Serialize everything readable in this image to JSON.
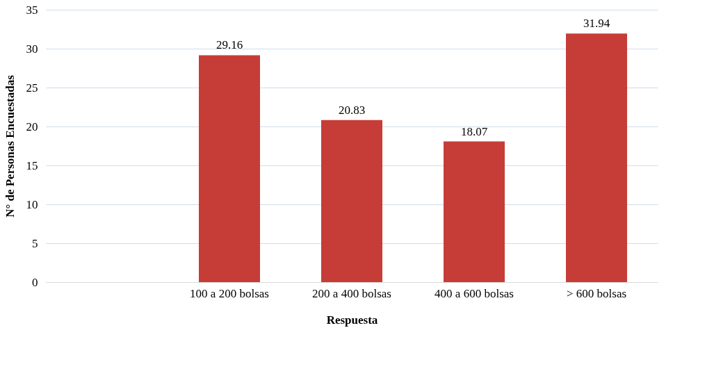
{
  "chart_data": {
    "type": "bar",
    "xlabel": "Respuesta",
    "ylabel": "N° de Personas Encuestadas",
    "categories": [
      null,
      "100 a 200 bolsas",
      "200 a 400 bolsas",
      "400 a 600 bolsas",
      "> 600 bolsas"
    ],
    "values": [
      null,
      29.16,
      20.83,
      18.07,
      31.94
    ],
    "color": "#c63d38",
    "ylim": [
      0,
      35
    ],
    "yticks": [
      0,
      5,
      10,
      15,
      20,
      25,
      30,
      35
    ],
    "grid": "y",
    "data_labels": true
  }
}
